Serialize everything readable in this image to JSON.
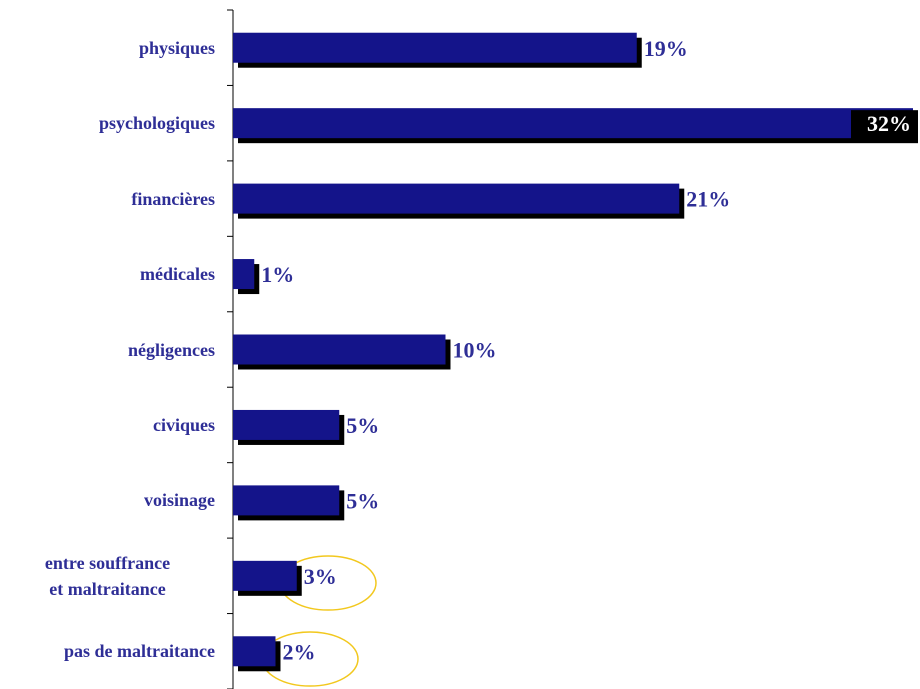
{
  "chart_data": {
    "type": "bar",
    "orientation": "horizontal",
    "categories": [
      "physiques",
      "psychologiques",
      "financières",
      "médicales",
      "négligences",
      "civiques",
      "voisinage",
      "entre souffrance\net maltraitance",
      "pas de maltraitance"
    ],
    "values": [
      19,
      32,
      21,
      1,
      10,
      5,
      5,
      3,
      2
    ],
    "value_labels": [
      "19%",
      "32%",
      "21%",
      "1%",
      "10%",
      "5%",
      "5%",
      "3%",
      "2%"
    ],
    "color": "#14148a"
  }
}
